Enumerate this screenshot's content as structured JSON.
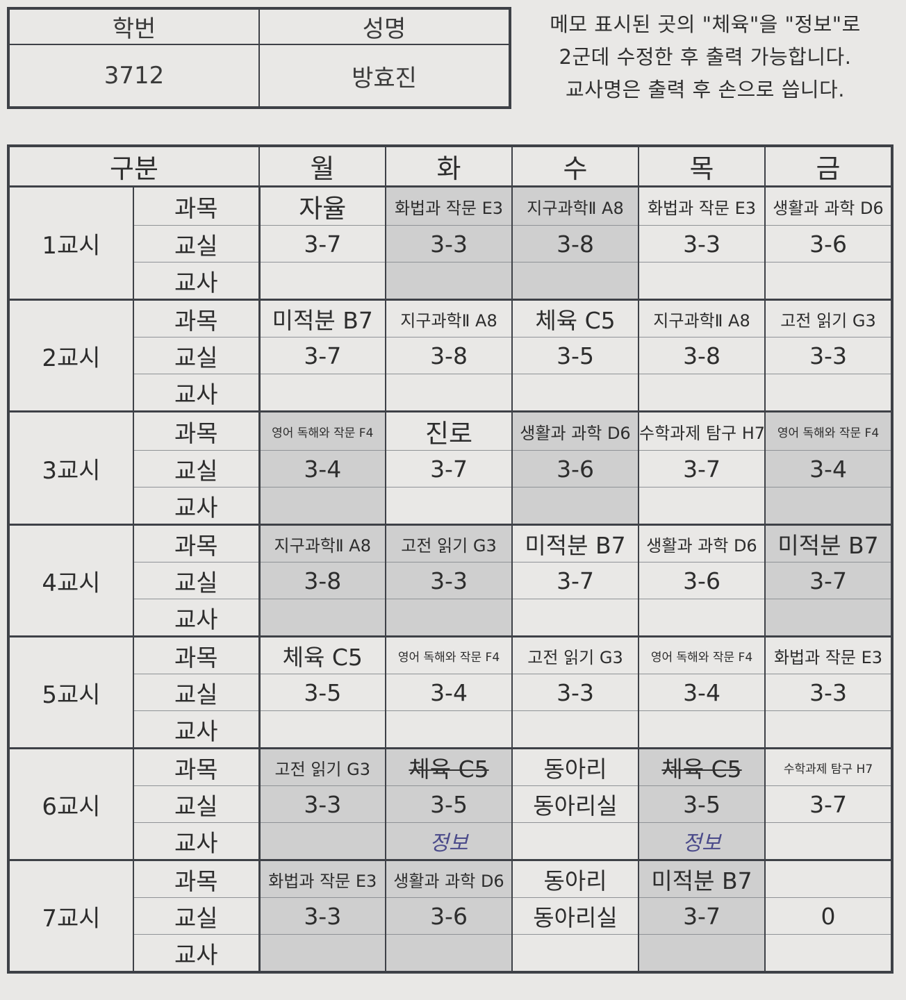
{
  "student": {
    "id_label": "학번",
    "name_label": "성명",
    "id_value": "3712",
    "name_value": "방효진"
  },
  "note_lines": [
    "메모 표시된 곳의 \"체육\"을 \"정보\"로",
    "2군데 수정한 후 출력 가능합니다.",
    "교사명은 출력 후 손으로 씁니다."
  ],
  "header": {
    "category": "구분",
    "days": [
      "월",
      "화",
      "수",
      "목",
      "금"
    ]
  },
  "field_labels": [
    "과목",
    "교실",
    "교사"
  ],
  "periods": [
    {
      "label": "1교시",
      "cells": [
        {
          "subject": "자율",
          "room": "3-7",
          "teacher": "",
          "size": "xl",
          "shade": false
        },
        {
          "subject": "화법과 작문 E3",
          "room": "3-3",
          "teacher": "",
          "size": "m",
          "shade": true
        },
        {
          "subject": "지구과학Ⅱ A8",
          "room": "3-8",
          "teacher": "",
          "size": "m",
          "shade": true
        },
        {
          "subject": "화법과 작문 E3",
          "room": "3-3",
          "teacher": "",
          "size": "m",
          "shade": false
        },
        {
          "subject": "생활과 과학 D6",
          "room": "3-6",
          "teacher": "",
          "size": "m",
          "shade": false
        }
      ]
    },
    {
      "label": "2교시",
      "cells": [
        {
          "subject": "미적분 B7",
          "room": "3-7",
          "teacher": "",
          "size": "l",
          "shade": false
        },
        {
          "subject": "지구과학Ⅱ A8",
          "room": "3-8",
          "teacher": "",
          "size": "m",
          "shade": false
        },
        {
          "subject": "체육 C5",
          "room": "3-5",
          "teacher": "",
          "size": "l",
          "shade": false
        },
        {
          "subject": "지구과학Ⅱ A8",
          "room": "3-8",
          "teacher": "",
          "size": "m",
          "shade": false
        },
        {
          "subject": "고전 읽기 G3",
          "room": "3-3",
          "teacher": "",
          "size": "m",
          "shade": false
        }
      ]
    },
    {
      "label": "3교시",
      "cells": [
        {
          "subject": "영어 독해와 작문 F4",
          "room": "3-4",
          "teacher": "",
          "size": "s",
          "shade": true
        },
        {
          "subject": "진로",
          "room": "3-7",
          "teacher": "",
          "size": "xl",
          "shade": false
        },
        {
          "subject": "생활과 과학 D6",
          "room": "3-6",
          "teacher": "",
          "size": "m",
          "shade": true
        },
        {
          "subject": "수학과제 탐구 H7",
          "room": "3-7",
          "teacher": "",
          "size": "m",
          "shade": false
        },
        {
          "subject": "영어 독해와 작문 F4",
          "room": "3-4",
          "teacher": "",
          "size": "s",
          "shade": true
        }
      ]
    },
    {
      "label": "4교시",
      "cells": [
        {
          "subject": "지구과학Ⅱ A8",
          "room": "3-8",
          "teacher": "",
          "size": "m",
          "shade": true
        },
        {
          "subject": "고전 읽기 G3",
          "room": "3-3",
          "teacher": "",
          "size": "m",
          "shade": true
        },
        {
          "subject": "미적분 B7",
          "room": "3-7",
          "teacher": "",
          "size": "l",
          "shade": false
        },
        {
          "subject": "생활과 과학 D6",
          "room": "3-6",
          "teacher": "",
          "size": "m",
          "shade": false
        },
        {
          "subject": "미적분 B7",
          "room": "3-7",
          "teacher": "",
          "size": "l",
          "shade": true
        }
      ]
    },
    {
      "label": "5교시",
      "cells": [
        {
          "subject": "체육 C5",
          "room": "3-5",
          "teacher": "",
          "size": "l",
          "shade": false
        },
        {
          "subject": "영어 독해와 작문 F4",
          "room": "3-4",
          "teacher": "",
          "size": "s",
          "shade": false
        },
        {
          "subject": "고전 읽기 G3",
          "room": "3-3",
          "teacher": "",
          "size": "m",
          "shade": false
        },
        {
          "subject": "영어 독해와 작문 F4",
          "room": "3-4",
          "teacher": "",
          "size": "s",
          "shade": false
        },
        {
          "subject": "화법과 작문 E3",
          "room": "3-3",
          "teacher": "",
          "size": "m",
          "shade": false
        }
      ]
    },
    {
      "label": "6교시",
      "cells": [
        {
          "subject": "고전 읽기 G3",
          "room": "3-3",
          "teacher": "",
          "size": "m",
          "shade": true
        },
        {
          "subject": "체육 C5",
          "room": "3-5",
          "teacher": "정보",
          "size": "l",
          "shade": true,
          "struck": true
        },
        {
          "subject": "동아리",
          "room": "동아리실",
          "teacher": "",
          "size": "l",
          "shade": false
        },
        {
          "subject": "체육 C5",
          "room": "3-5",
          "teacher": "정보",
          "size": "l",
          "shade": true,
          "struck": true
        },
        {
          "subject": "수학과제 탐구 H7",
          "room": "3-7",
          "teacher": "",
          "size": "s",
          "shade": false
        }
      ]
    },
    {
      "label": "7교시",
      "cells": [
        {
          "subject": "화법과 작문 E3",
          "room": "3-3",
          "teacher": "",
          "size": "m",
          "shade": true
        },
        {
          "subject": "생활과 과학 D6",
          "room": "3-6",
          "teacher": "",
          "size": "m",
          "shade": true
        },
        {
          "subject": "동아리",
          "room": "동아리실",
          "teacher": "",
          "size": "l",
          "shade": false
        },
        {
          "subject": "미적분 B7",
          "room": "3-7",
          "teacher": "",
          "size": "l",
          "shade": true
        },
        {
          "subject": "",
          "room": "0",
          "teacher": "",
          "size": "m",
          "shade": false
        }
      ]
    }
  ]
}
